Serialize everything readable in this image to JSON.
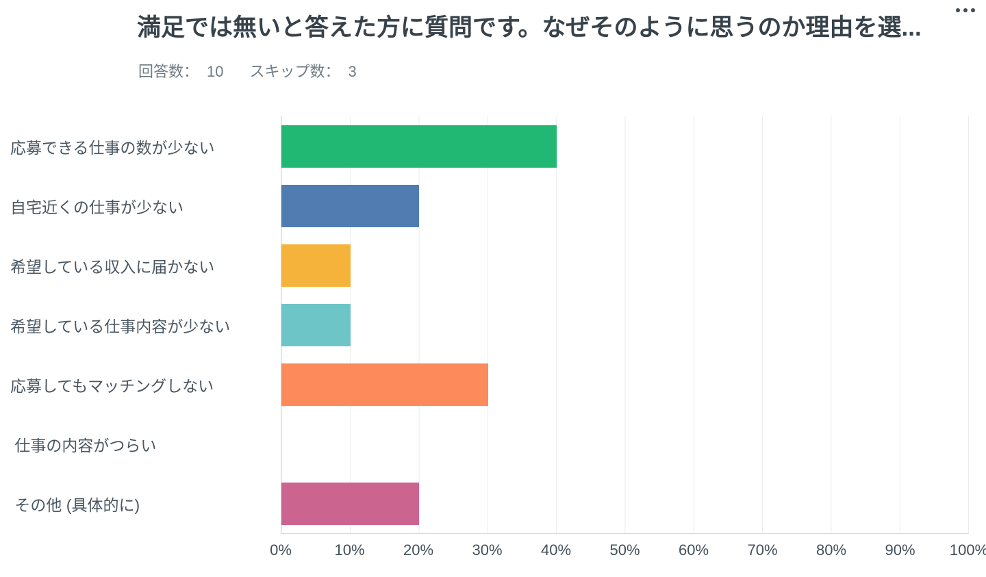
{
  "header": {
    "title": "満足では無いと答えた方に質問です。なぜそのように思うのか理由を選...",
    "stats": [
      {
        "label": "回答数：",
        "value": "10"
      },
      {
        "label": "スキップ数：",
        "value": "3"
      }
    ],
    "menu_icon": "ellipsis-menu"
  },
  "chart_data": {
    "type": "bar",
    "orientation": "horizontal",
    "title": "満足では無いと答えた方に質問です。なぜそのように思うのか理由を選...",
    "categories": [
      "応募できる仕事の数が少ない",
      "自宅近くの仕事が少ない",
      "希望している収入に届かない",
      "希望している仕事内容が少ない",
      "応募してもマッチングしない",
      " 仕事の内容がつらい",
      " その他 (具体的に)"
    ],
    "values": [
      40,
      20,
      10,
      10,
      30,
      0,
      20
    ],
    "colors": [
      "#20b873",
      "#507cb1",
      "#f5b33b",
      "#6ec5c8",
      "#fc8a5a",
      null,
      "#cb6590"
    ],
    "x_ticks": [
      "0%",
      "10%",
      "20%",
      "30%",
      "40%",
      "50%",
      "60%",
      "70%",
      "80%",
      "90%",
      "100%"
    ],
    "xlim": [
      0,
      100
    ],
    "unit": "%",
    "grid": true,
    "legend": "none",
    "responded": 10,
    "skipped": 3
  }
}
